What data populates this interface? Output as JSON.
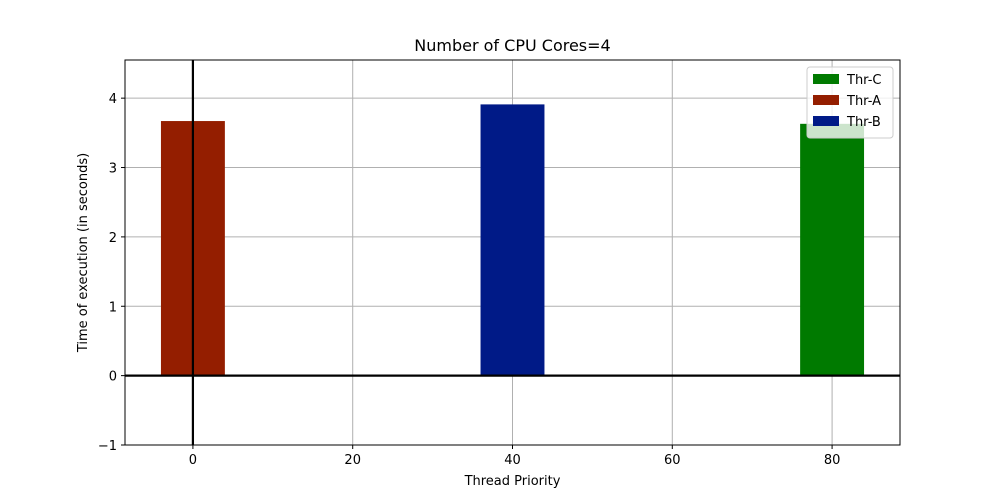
{
  "chart_data": {
    "type": "bar",
    "title": "Number of CPU Cores=4",
    "xlabel": "Thread Priority",
    "ylabel": "Time of execution (in seconds)",
    "xlim": [
      -8.5,
      88.5
    ],
    "ylim": [
      -1,
      4.55
    ],
    "xticks": [
      0,
      20,
      40,
      60,
      80
    ],
    "yticks": [
      -1,
      0,
      1,
      2,
      3,
      4
    ],
    "grid": true,
    "bar_width": 8,
    "legend_position": "top-right",
    "series": [
      {
        "name": "Thr-C",
        "color": "#007a00",
        "x": [
          80
        ],
        "values": [
          3.63
        ]
      },
      {
        "name": "Thr-A",
        "color": "#941e00",
        "x": [
          0
        ],
        "values": [
          3.67
        ]
      },
      {
        "name": "Thr-B",
        "color": "#001a87",
        "x": [
          40
        ],
        "values": [
          3.91
        ]
      }
    ],
    "reference_lines": {
      "horizontal_at": 0,
      "vertical_at": 0
    }
  }
}
